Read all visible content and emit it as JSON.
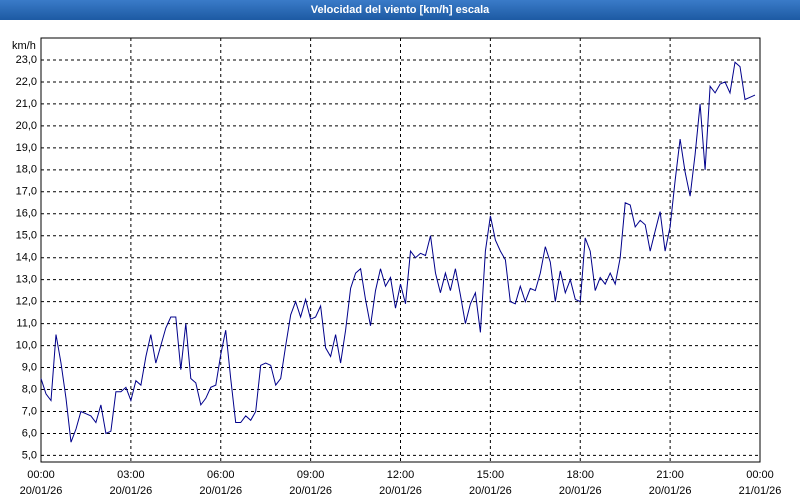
{
  "chart_data": {
    "type": "line",
    "title": "Velocidad del viento [km/h] escala",
    "y_unit": "km/h",
    "color": "#00008b",
    "grid": true,
    "x": [
      0,
      10,
      20,
      30,
      40,
      50,
      60,
      70,
      80,
      90,
      100,
      110,
      120,
      130,
      140,
      150,
      160,
      170,
      180,
      190,
      200,
      210,
      220,
      230,
      240,
      250,
      260,
      270,
      280,
      290,
      300,
      310,
      320,
      330,
      340,
      350,
      360,
      370,
      380,
      390,
      400,
      410,
      420,
      430,
      440,
      450,
      460,
      470,
      480,
      490,
      500,
      510,
      520,
      530,
      540,
      550,
      560,
      570,
      580,
      590,
      600,
      610,
      620,
      630,
      640,
      650,
      660,
      670,
      680,
      690,
      700,
      710,
      720,
      730,
      740,
      750,
      760,
      770,
      780,
      790,
      800,
      810,
      820,
      830,
      840,
      850,
      860,
      870,
      880,
      890,
      900,
      910,
      920,
      930,
      940,
      950,
      960,
      970,
      980,
      990,
      1000,
      1010,
      1020,
      1030,
      1040,
      1050,
      1060,
      1070,
      1080,
      1090,
      1100,
      1110,
      1120,
      1130,
      1140,
      1150,
      1160,
      1170,
      1180,
      1190,
      1200,
      1210,
      1220,
      1230,
      1240,
      1250,
      1260,
      1270,
      1280,
      1290,
      1300,
      1310,
      1320,
      1330,
      1340,
      1350,
      1360,
      1370,
      1380,
      1390,
      1400,
      1410,
      1420,
      1430
    ],
    "values": [
      8.5,
      7.8,
      7.5,
      10.5,
      9.2,
      7.6,
      5.6,
      6.2,
      7.0,
      6.9,
      6.8,
      6.5,
      7.3,
      6.0,
      6.1,
      7.9,
      7.9,
      8.1,
      7.5,
      8.4,
      8.2,
      9.5,
      10.5,
      9.2,
      10.0,
      10.8,
      11.3,
      11.3,
      8.9,
      11.0,
      8.5,
      8.3,
      7.3,
      7.6,
      8.1,
      8.2,
      9.6,
      10.7,
      8.5,
      6.5,
      6.5,
      6.8,
      6.6,
      7.0,
      9.1,
      9.2,
      9.1,
      8.2,
      8.5,
      10.0,
      11.4,
      12.0,
      11.3,
      12.1,
      11.2,
      11.3,
      11.8,
      9.9,
      9.5,
      10.5,
      9.2,
      10.7,
      12.6,
      13.3,
      13.5,
      12.1,
      10.9,
      12.5,
      13.5,
      12.7,
      13.1,
      11.7,
      12.8,
      11.9,
      14.3,
      14.0,
      14.2,
      14.1,
      15.0,
      13.3,
      12.4,
      13.3,
      12.5,
      13.5,
      12.3,
      11.0,
      11.9,
      12.4,
      10.6,
      14.3,
      15.9,
      14.8,
      14.3,
      13.9,
      12.0,
      11.9,
      12.7,
      12.0,
      12.6,
      12.5,
      13.3,
      14.5,
      13.8,
      12.0,
      13.4,
      12.4,
      13.0,
      12.1,
      12.0,
      14.9,
      14.3,
      12.5,
      13.1,
      12.8,
      13.3,
      12.8,
      14.0,
      16.5,
      16.4,
      15.4,
      15.7,
      15.5,
      14.3,
      15.2,
      16.1,
      14.3,
      15.4,
      17.5,
      19.4,
      17.9,
      16.8,
      18.7,
      21.0,
      18.0,
      21.8,
      21.5,
      21.9,
      22.0,
      21.5,
      22.9,
      22.7,
      21.2,
      21.3,
      21.4
    ],
    "xlim": [
      0,
      1440
    ],
    "xticks": [
      {
        "value": 0,
        "label": "00:00",
        "date": "20/01/26"
      },
      {
        "value": 180,
        "label": "03:00",
        "date": "20/01/26"
      },
      {
        "value": 360,
        "label": "06:00",
        "date": "20/01/26"
      },
      {
        "value": 540,
        "label": "09:00",
        "date": "20/01/26"
      },
      {
        "value": 720,
        "label": "12:00",
        "date": "20/01/26"
      },
      {
        "value": 900,
        "label": "15:00",
        "date": "20/01/26"
      },
      {
        "value": 1080,
        "label": "18:00",
        "date": "20/01/26"
      },
      {
        "value": 1260,
        "label": "21:00",
        "date": "20/01/26"
      },
      {
        "value": 1440,
        "label": "00:00",
        "date": "21/01/26"
      }
    ],
    "ylim": [
      4.7,
      24
    ],
    "yticks": [
      {
        "value": 5,
        "label": "5,0"
      },
      {
        "value": 6,
        "label": "6,0"
      },
      {
        "value": 7,
        "label": "7,0"
      },
      {
        "value": 8,
        "label": "8,0"
      },
      {
        "value": 9,
        "label": "9,0"
      },
      {
        "value": 10,
        "label": "10,0"
      },
      {
        "value": 11,
        "label": "11,0"
      },
      {
        "value": 12,
        "label": "12,0"
      },
      {
        "value": 13,
        "label": "13,0"
      },
      {
        "value": 14,
        "label": "14,0"
      },
      {
        "value": 15,
        "label": "15,0"
      },
      {
        "value": 16,
        "label": "16,0"
      },
      {
        "value": 17,
        "label": "17,0"
      },
      {
        "value": 18,
        "label": "18,0"
      },
      {
        "value": 19,
        "label": "19,0"
      },
      {
        "value": 20,
        "label": "20,0"
      },
      {
        "value": 21,
        "label": "21,0"
      },
      {
        "value": 22,
        "label": "22,0"
      },
      {
        "value": 23,
        "label": "23,0"
      }
    ]
  }
}
